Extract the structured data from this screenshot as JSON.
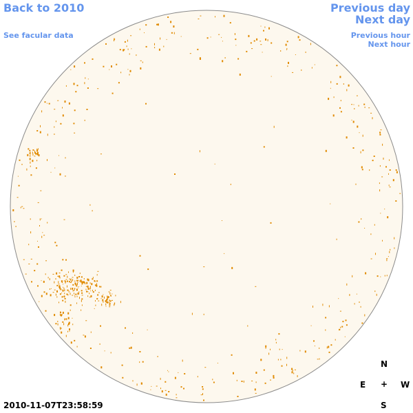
{
  "header": {
    "back_link": "Back to 2010",
    "facular_link": "See facular data",
    "previous_day": "Previous day",
    "next_day": "Next day",
    "previous_hour": "Previous hour",
    "next_hour": "Next hour"
  },
  "footer": {
    "timestamp": "2010-11-07T23:58:59"
  },
  "compass": {
    "north": "N",
    "east": "E",
    "center": "+",
    "west": "W",
    "south": "S"
  }
}
